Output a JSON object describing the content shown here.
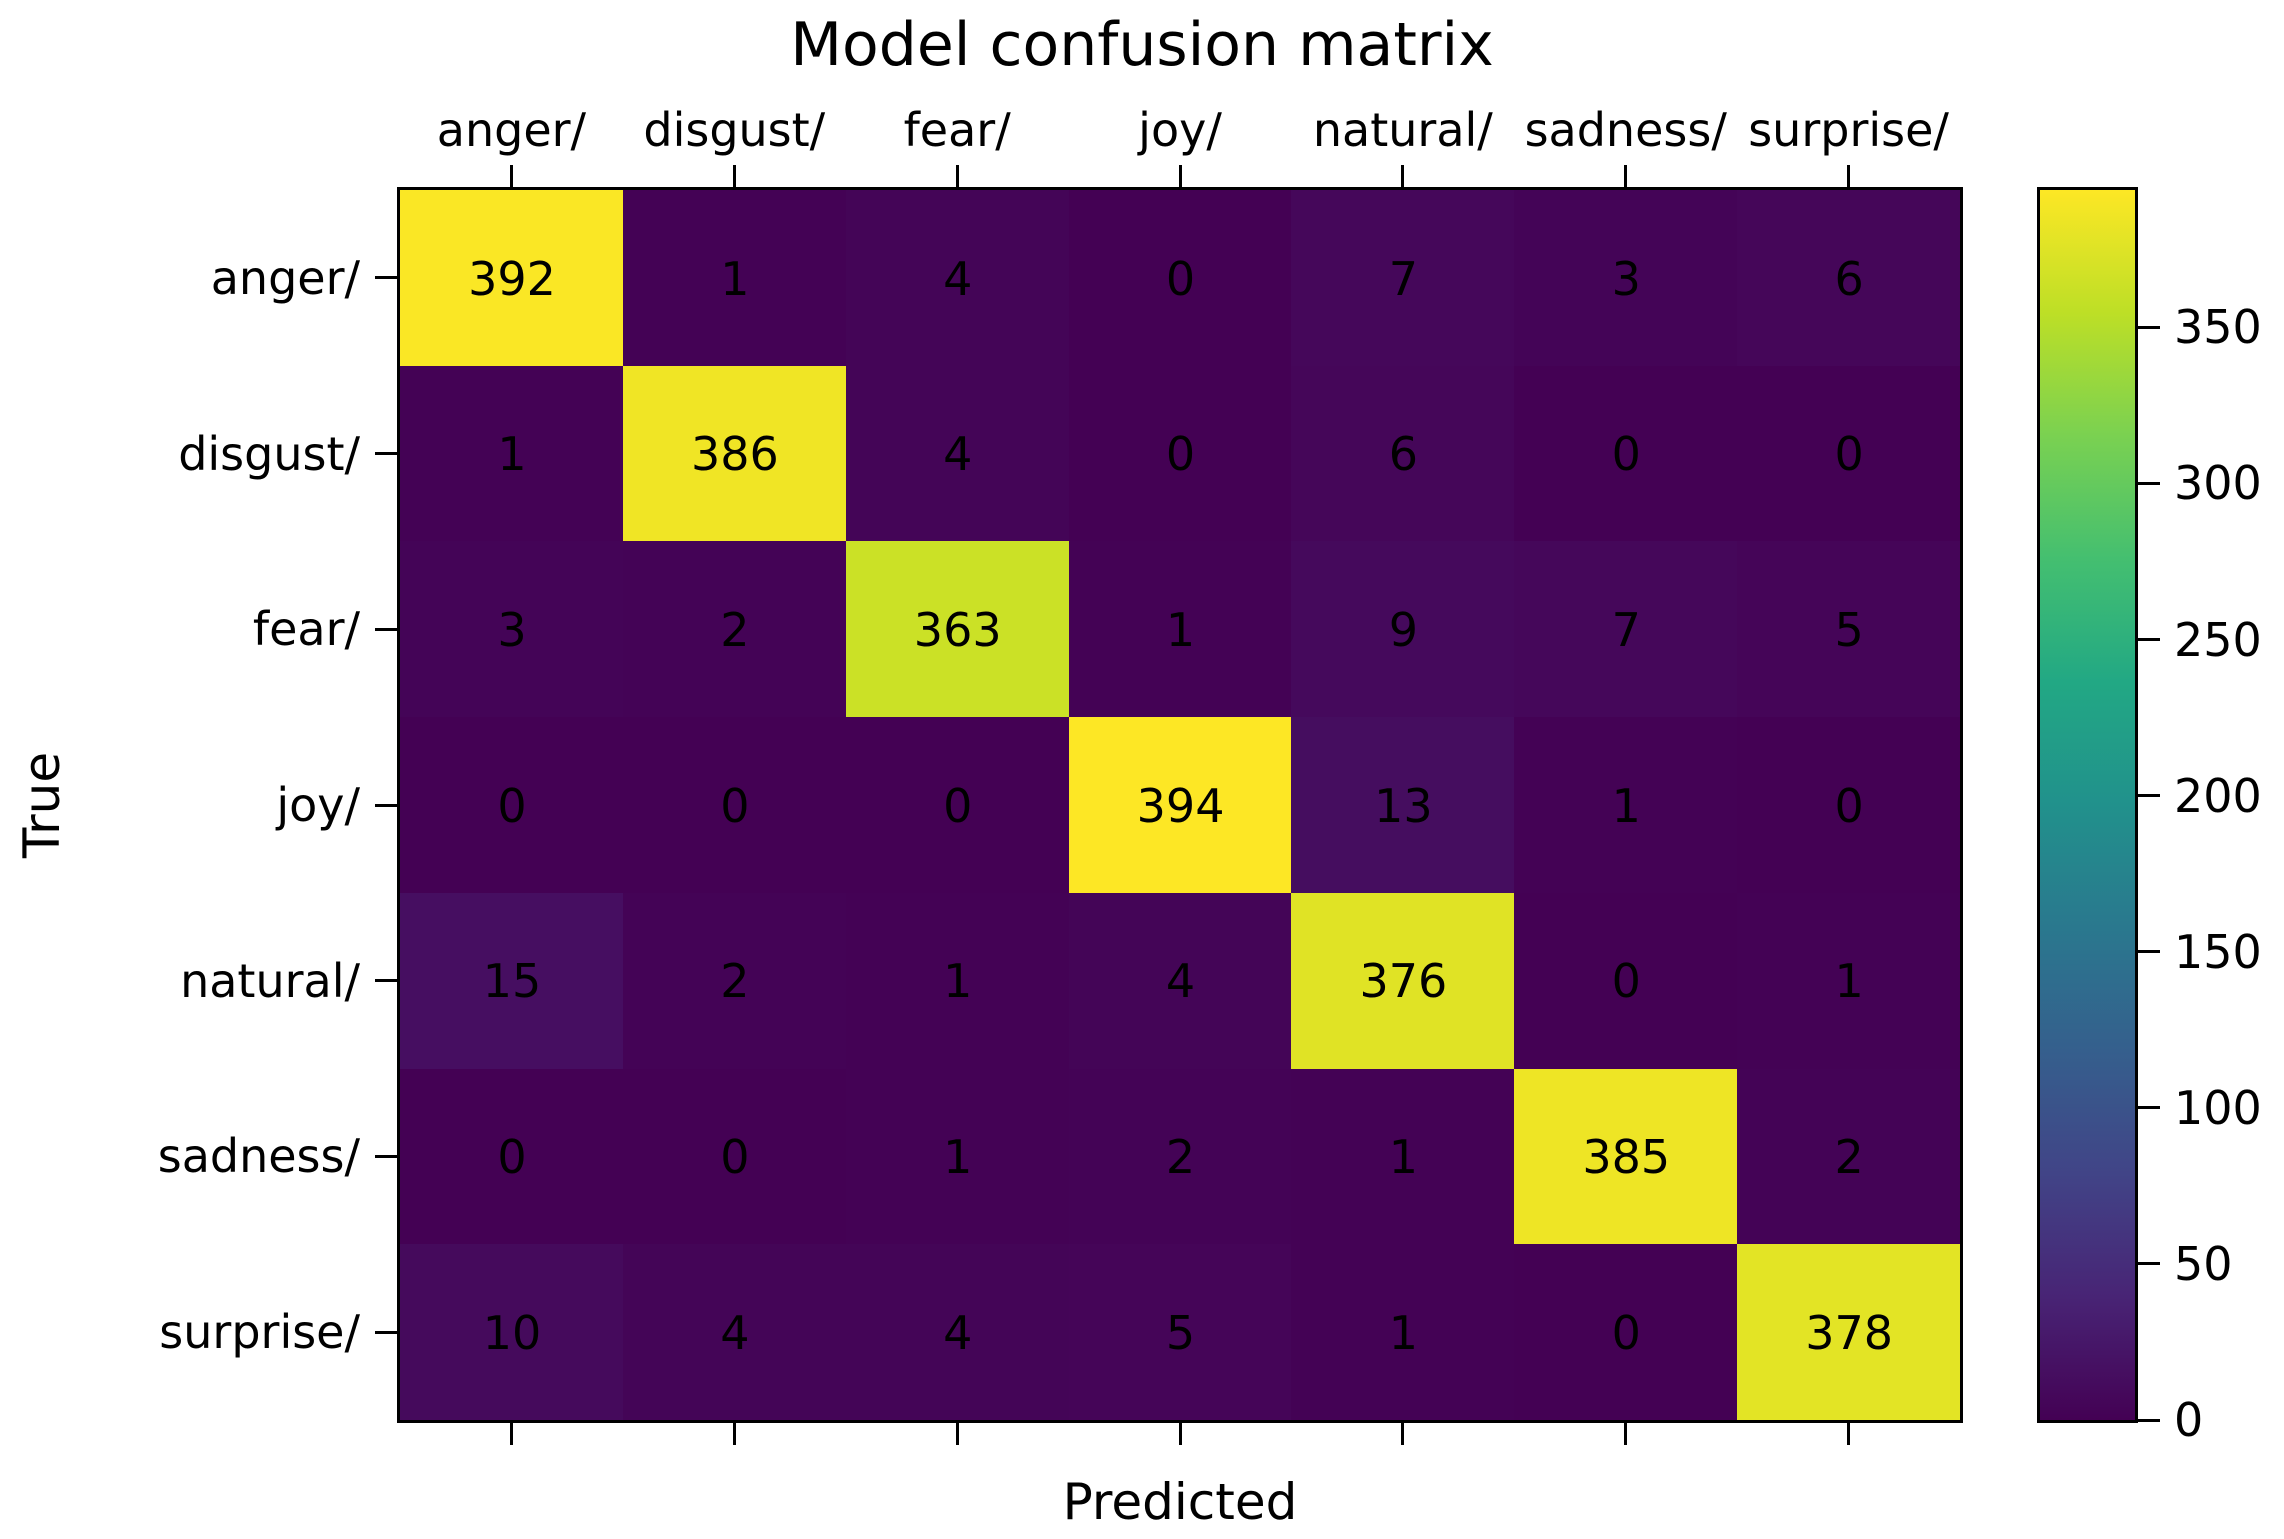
{
  "figure": {
    "background_color": "#ffffff",
    "text_color": "#000000",
    "spine_color": "#000000"
  },
  "chart_data": {
    "type": "heatmap",
    "title": "Model confusion matrix",
    "xlabel": "Predicted",
    "ylabel": "True",
    "x_tick_labels": [
      "anger/",
      "disgust/",
      "fear/",
      "joy/",
      "natural/",
      "sadness/",
      "surprise/"
    ],
    "y_tick_labels": [
      "anger/",
      "disgust/",
      "fear/",
      "joy/",
      "natural/",
      "sadness/",
      "surprise/"
    ],
    "matrix": [
      [
        392,
        1,
        4,
        0,
        7,
        3,
        6
      ],
      [
        1,
        386,
        4,
        0,
        6,
        0,
        0
      ],
      [
        3,
        2,
        363,
        1,
        9,
        7,
        5
      ],
      [
        0,
        0,
        0,
        394,
        13,
        1,
        0
      ],
      [
        15,
        2,
        1,
        4,
        376,
        0,
        1
      ],
      [
        0,
        0,
        1,
        2,
        1,
        385,
        2
      ],
      [
        10,
        4,
        4,
        5,
        1,
        0,
        378
      ]
    ],
    "colormap": "viridis",
    "colormap_stops": [
      "#440154",
      "#482475",
      "#414487",
      "#355f8d",
      "#2a788e",
      "#21918c",
      "#22a884",
      "#44bf70",
      "#7ad151",
      "#bddf26",
      "#fde725"
    ],
    "vmin": 0,
    "vmax": 394,
    "colorbar_ticks": [
      0,
      50,
      100,
      150,
      200,
      250,
      300,
      350
    ],
    "legend_position": "right-colorbar",
    "grid": false
  }
}
